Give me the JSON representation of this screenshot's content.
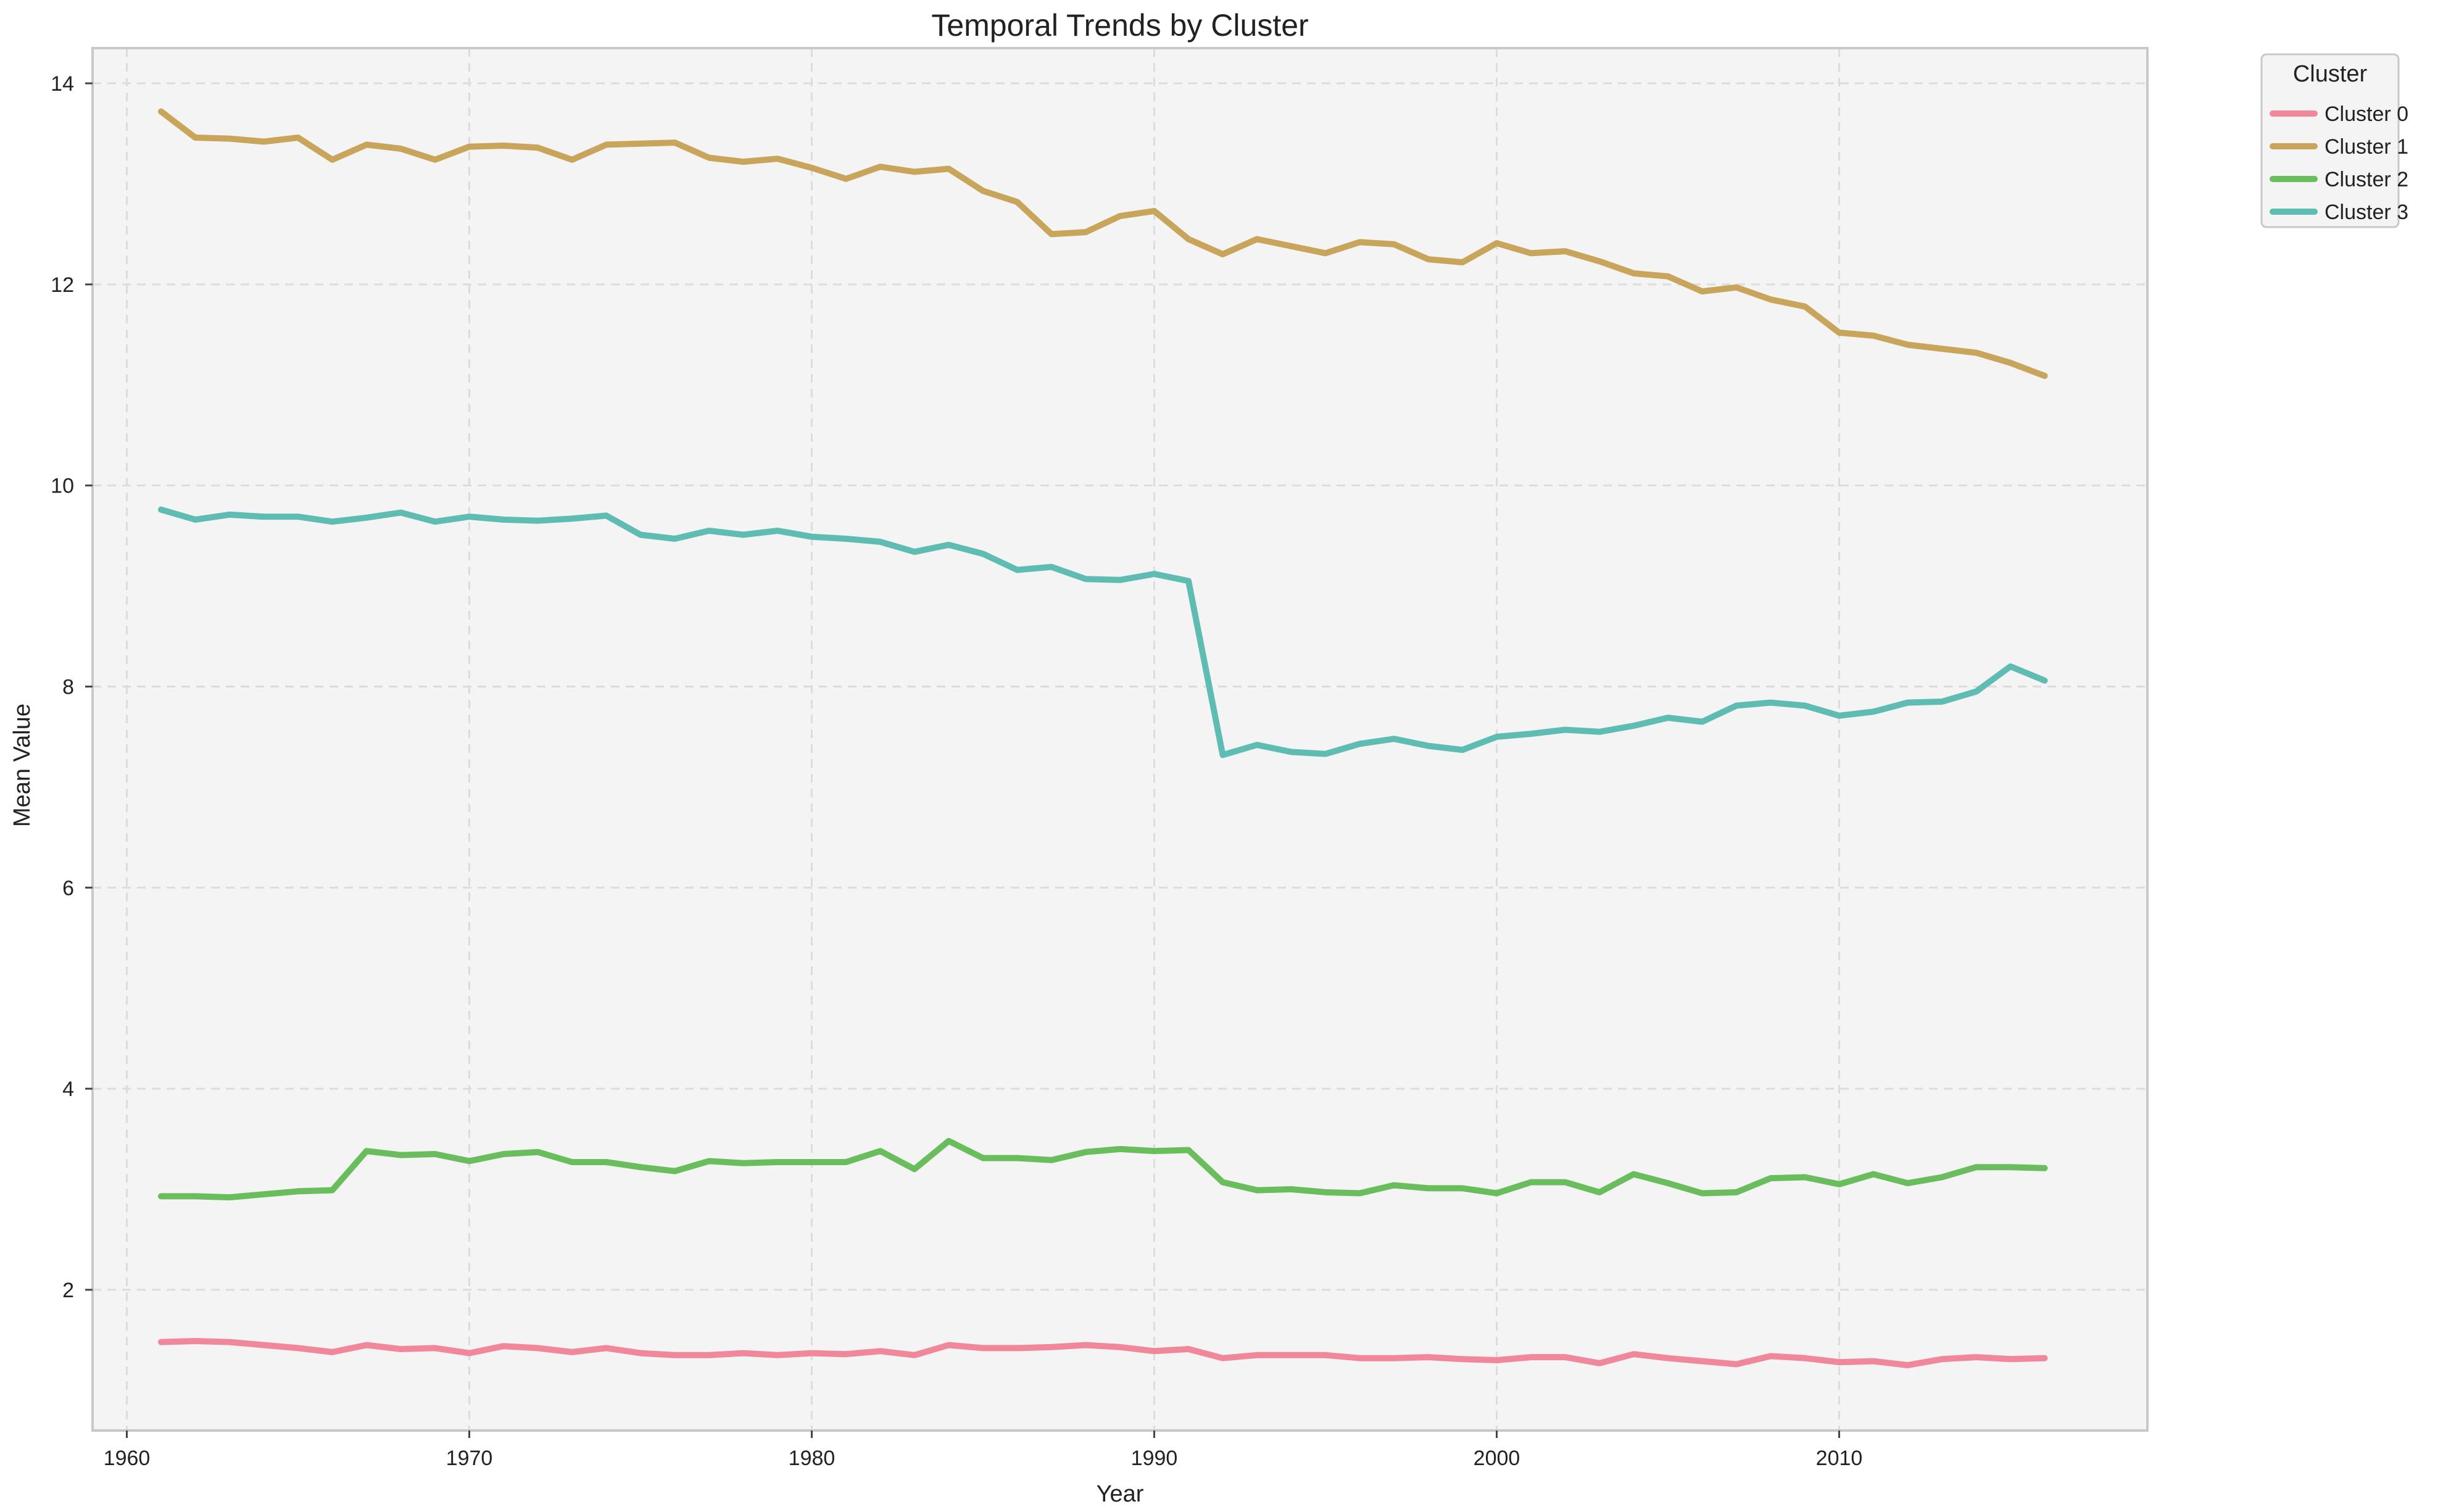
{
  "chart_data": {
    "type": "line",
    "title": "Temporal Trends by Cluster",
    "xlabel": "Year",
    "ylabel": "Mean Value",
    "xlim": [
      1959,
      2019
    ],
    "ylim": [
      0.6,
      14.35
    ],
    "xticks": [
      1960,
      1970,
      1980,
      1990,
      2000,
      2010
    ],
    "yticks": [
      2,
      4,
      6,
      8,
      10,
      12,
      14
    ],
    "grid": true,
    "legend": {
      "title": "Cluster",
      "placement": "outside-top-right"
    },
    "x": [
      1961,
      1962,
      1963,
      1964,
      1965,
      1966,
      1967,
      1968,
      1969,
      1970,
      1971,
      1972,
      1973,
      1974,
      1975,
      1976,
      1977,
      1978,
      1979,
      1980,
      1981,
      1982,
      1983,
      1984,
      1985,
      1986,
      1987,
      1988,
      1989,
      1990,
      1991,
      1992,
      1993,
      1994,
      1995,
      1996,
      1997,
      1998,
      1999,
      2000,
      2001,
      2002,
      2003,
      2004,
      2005,
      2006,
      2007,
      2008,
      2009,
      2010,
      2011,
      2012,
      2013,
      2014,
      2015,
      2016
    ],
    "series": [
      {
        "name": "Cluster 0",
        "color": "#f0879a",
        "values": [
          1.48,
          1.49,
          1.48,
          1.45,
          1.42,
          1.38,
          1.45,
          1.41,
          1.42,
          1.37,
          1.44,
          1.42,
          1.38,
          1.42,
          1.37,
          1.35,
          1.35,
          1.37,
          1.35,
          1.37,
          1.36,
          1.39,
          1.35,
          1.45,
          1.42,
          1.42,
          1.43,
          1.45,
          1.43,
          1.39,
          1.41,
          1.32,
          1.35,
          1.35,
          1.35,
          1.32,
          1.32,
          1.33,
          1.31,
          1.3,
          1.33,
          1.33,
          1.27,
          1.36,
          1.32,
          1.29,
          1.26,
          1.34,
          1.32,
          1.28,
          1.29,
          1.25,
          1.31,
          1.33,
          1.31,
          1.32
        ]
      },
      {
        "name": "Cluster 1",
        "color": "#c8a55a",
        "values": [
          13.72,
          13.46,
          13.45,
          13.42,
          13.46,
          13.24,
          13.39,
          13.35,
          13.24,
          13.37,
          13.38,
          13.36,
          13.24,
          13.39,
          13.4,
          13.41,
          13.26,
          13.22,
          13.25,
          13.16,
          13.05,
          13.17,
          13.12,
          13.15,
          12.93,
          12.82,
          12.5,
          12.52,
          12.68,
          12.73,
          12.45,
          12.3,
          12.45,
          12.38,
          12.31,
          12.42,
          12.4,
          12.25,
          12.22,
          12.41,
          12.31,
          12.33,
          12.23,
          12.11,
          12.08,
          11.93,
          11.97,
          11.85,
          11.78,
          11.52,
          11.49,
          11.4,
          11.36,
          11.32,
          11.22,
          11.09
        ]
      },
      {
        "name": "Cluster 2",
        "color": "#6abd5c",
        "values": [
          2.93,
          2.93,
          2.92,
          2.95,
          2.98,
          2.99,
          3.38,
          3.34,
          3.35,
          3.28,
          3.35,
          3.37,
          3.27,
          3.27,
          3.22,
          3.18,
          3.28,
          3.26,
          3.27,
          3.27,
          3.27,
          3.38,
          3.2,
          3.48,
          3.31,
          3.31,
          3.29,
          3.37,
          3.4,
          3.38,
          3.39,
          3.07,
          2.99,
          3.0,
          2.97,
          2.96,
          3.04,
          3.01,
          3.01,
          2.96,
          3.07,
          3.07,
          2.97,
          3.15,
          3.06,
          2.96,
          2.97,
          3.11,
          3.12,
          3.05,
          3.15,
          3.06,
          3.12,
          3.22,
          3.22,
          3.21
        ]
      },
      {
        "name": "Cluster 3",
        "color": "#5ebcb2",
        "values": [
          9.76,
          9.66,
          9.71,
          9.69,
          9.69,
          9.64,
          9.68,
          9.73,
          9.64,
          9.69,
          9.66,
          9.65,
          9.67,
          9.7,
          9.51,
          9.47,
          9.55,
          9.51,
          9.55,
          9.49,
          9.47,
          9.44,
          9.34,
          9.41,
          9.32,
          9.16,
          9.19,
          9.07,
          9.06,
          9.12,
          9.05,
          7.32,
          7.42,
          7.35,
          7.33,
          7.43,
          7.48,
          7.41,
          7.37,
          7.5,
          7.53,
          7.57,
          7.55,
          7.61,
          7.69,
          7.65,
          7.81,
          7.84,
          7.81,
          7.71,
          7.75,
          7.84,
          7.85,
          7.95,
          8.2,
          8.06
        ]
      }
    ]
  }
}
